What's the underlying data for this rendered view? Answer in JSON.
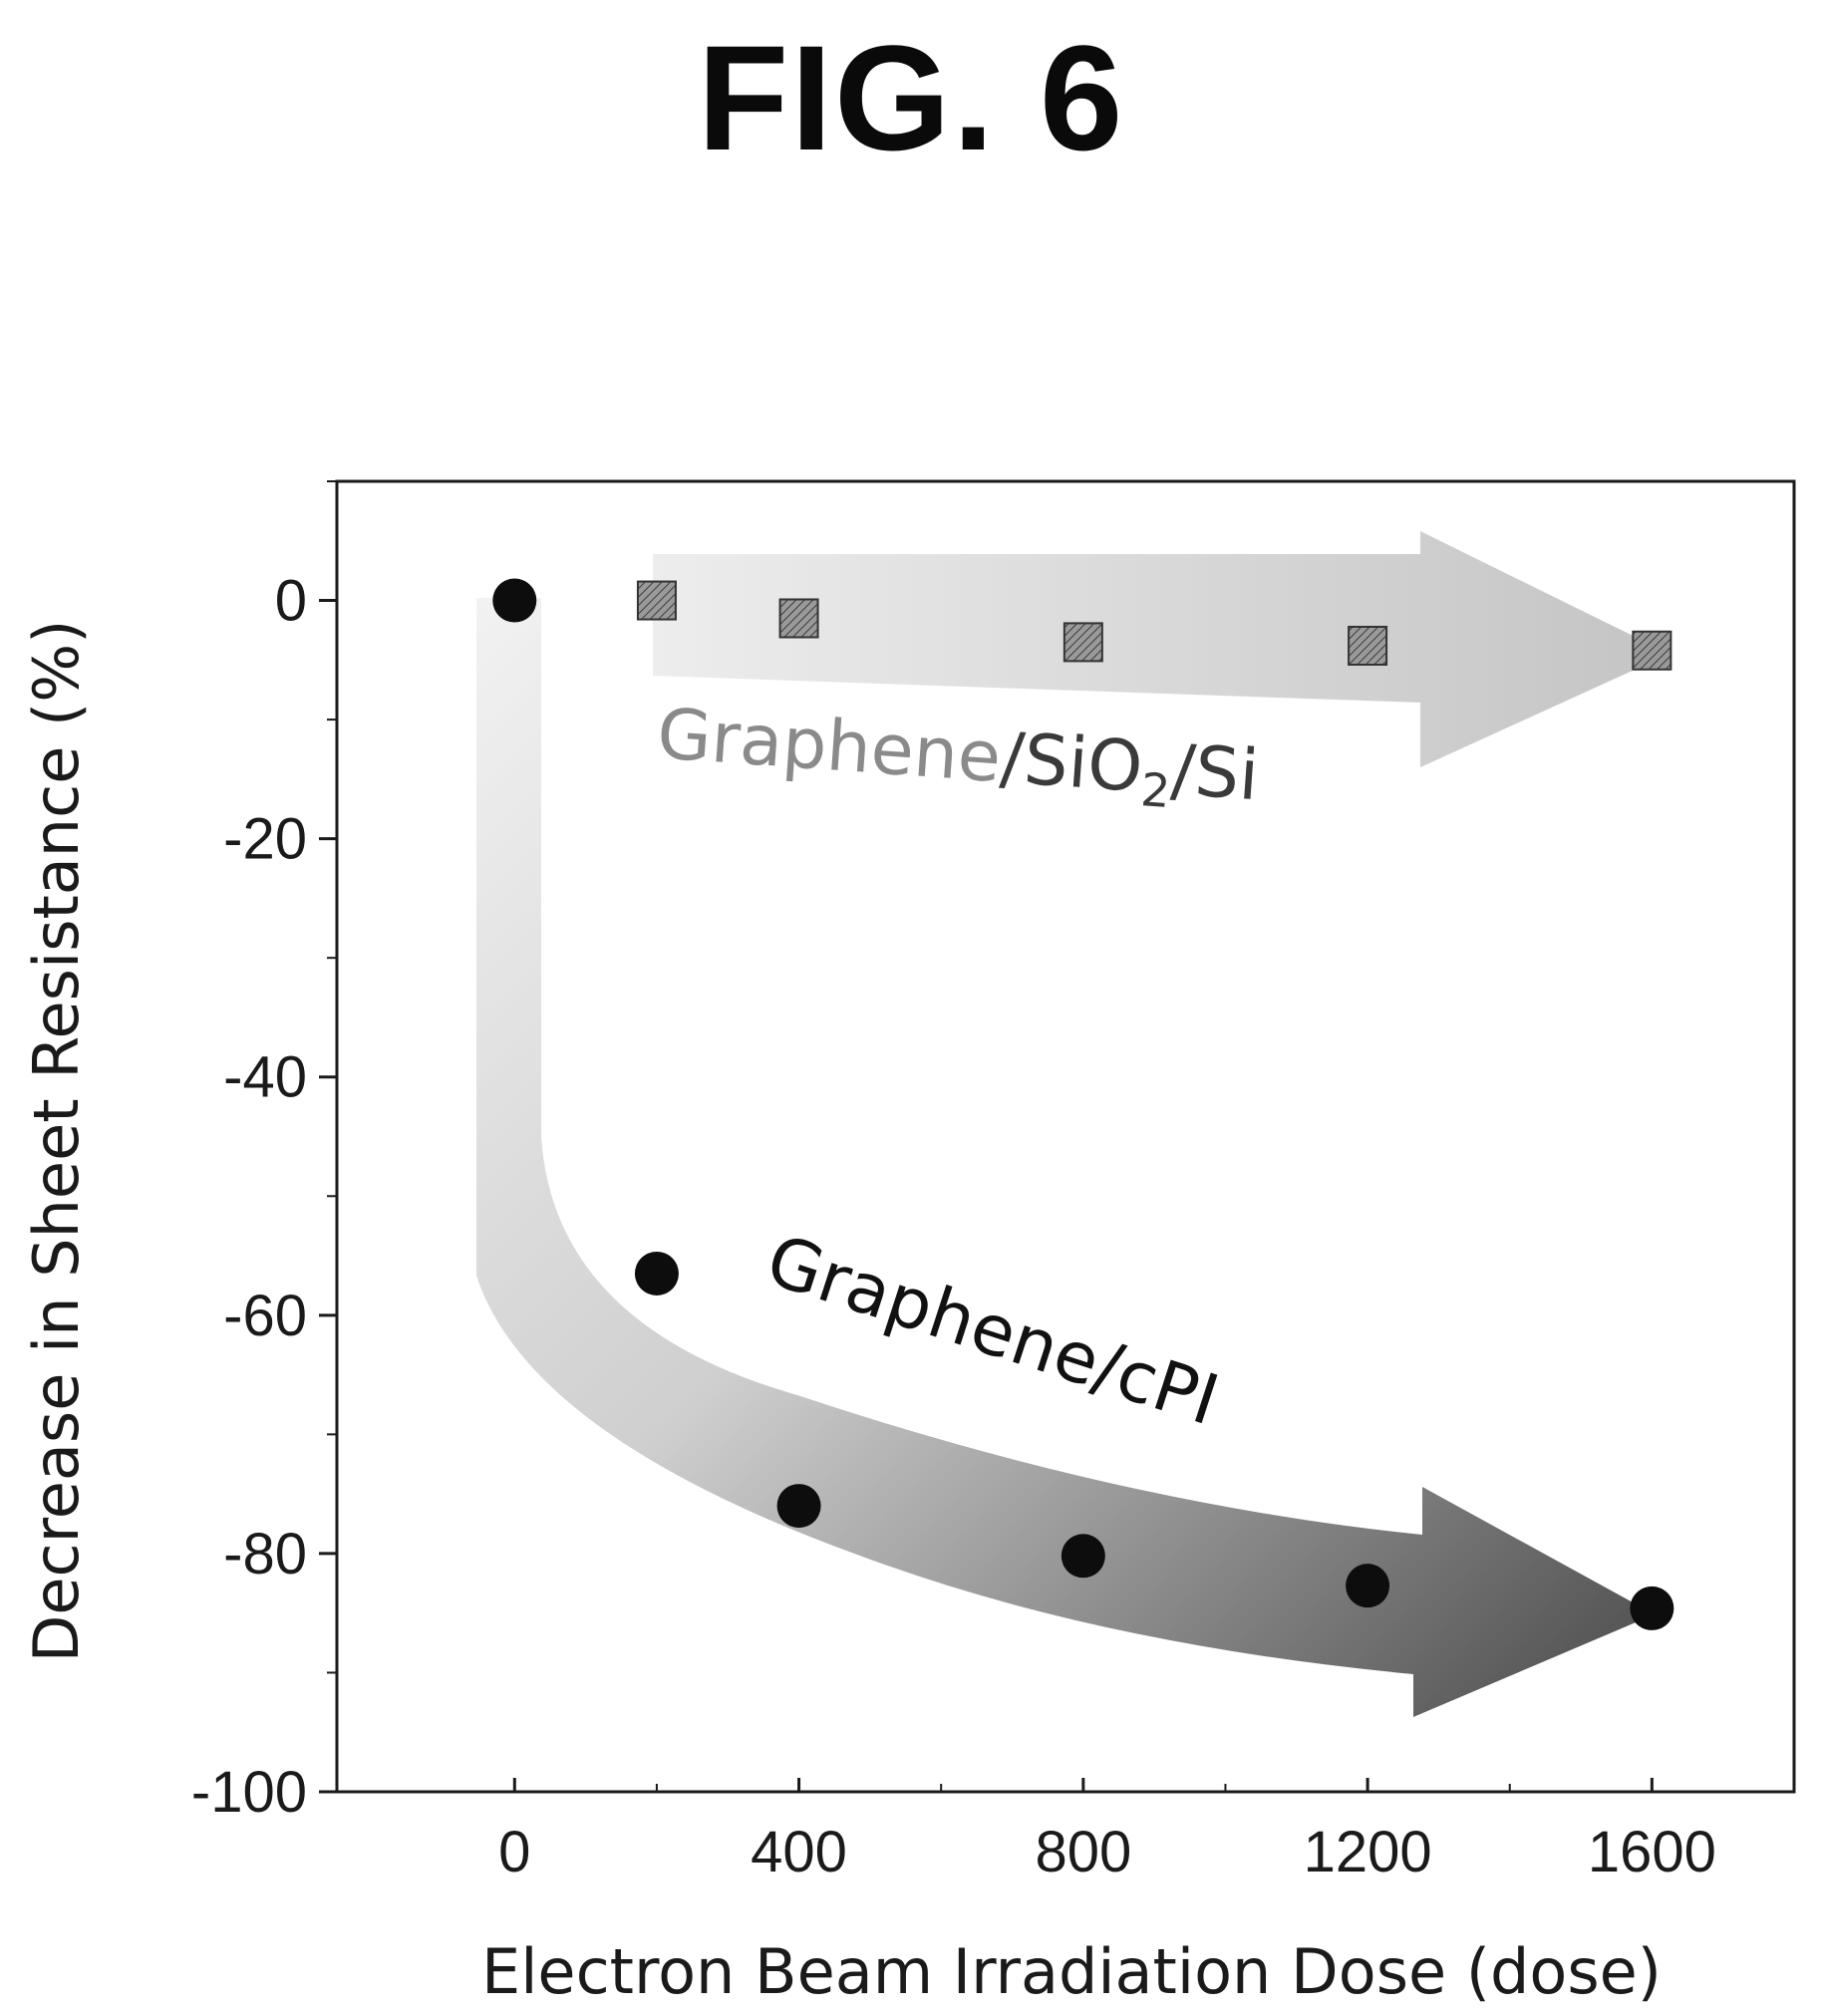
{
  "figure": {
    "title": "FIG. 6"
  },
  "chart_data": {
    "type": "scatter",
    "title": "FIG. 6",
    "xlabel": "Electron Beam Irradiation Dose (dose)",
    "ylabel": "Decrease in Sheet Resistance (%)",
    "xlim": [
      -250,
      1800
    ],
    "ylim": [
      -100,
      10
    ],
    "x_ticks": [
      "0",
      "400",
      "800",
      "1200",
      "1600"
    ],
    "y_ticks": [
      "0",
      "-20",
      "-40",
      "-60",
      "-80",
      "-100"
    ],
    "grid": false,
    "series": [
      {
        "name": "Graphene/SiO2/Si",
        "marker": "square",
        "color": "#6e6e6e",
        "x": [
          200,
          400,
          800,
          1200,
          1600
        ],
        "y": [
          0,
          -1.5,
          -3.5,
          -3.8,
          -4.2
        ]
      },
      {
        "name": "Graphene/cPI",
        "marker": "circle",
        "color": "#0d0d0d",
        "x": [
          0,
          200,
          400,
          800,
          1200,
          1600
        ],
        "y": [
          0,
          -56.5,
          -76,
          -80.2,
          -82.7,
          -84.6
        ]
      }
    ],
    "annotations": [
      {
        "text_main": "Graphene",
        "text_rest": "/SiO",
        "subscript": "2",
        "text_tail": "/Si"
      },
      {
        "text": "Graphene/cPI"
      }
    ]
  }
}
